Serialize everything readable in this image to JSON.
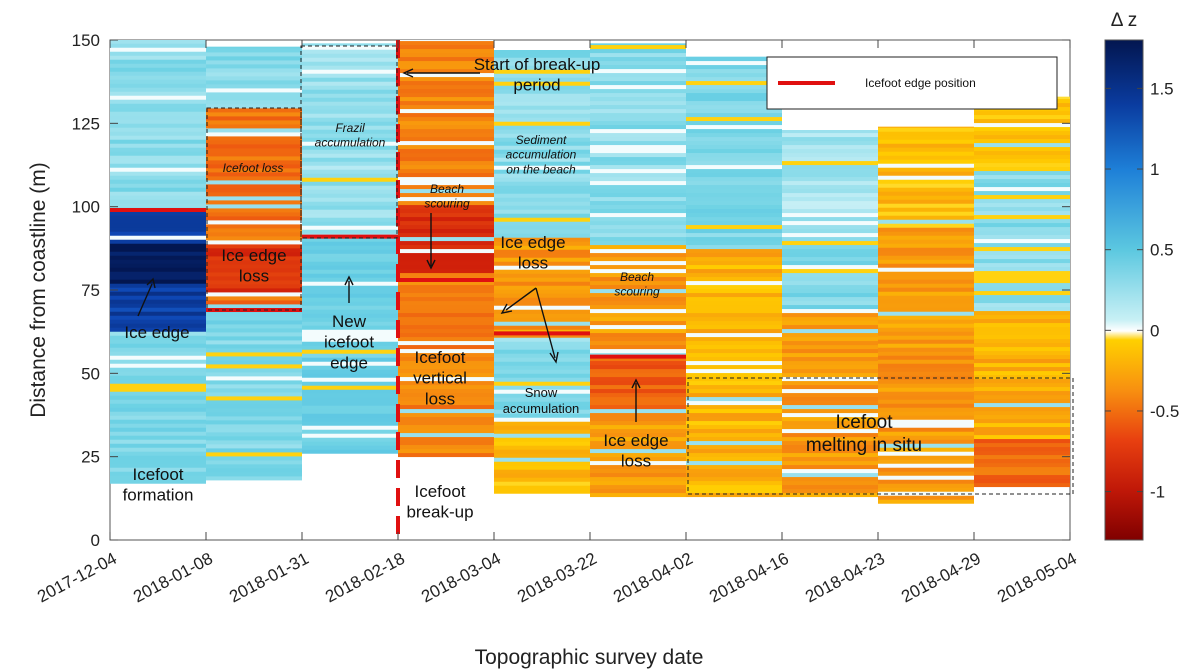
{
  "chart_data": {
    "type": "heatmap",
    "title": "",
    "xlabel": "Topographic survey date",
    "ylabel": "Distance from coastline (m)",
    "x_categories": [
      "2017-12-04",
      "2018-01-08",
      "2018-01-31",
      "2018-02-18",
      "2018-03-04",
      "2018-03-22",
      "2018-04-02",
      "2018-04-16",
      "2018-04-23",
      "2018-04-29",
      "2018-05-04"
    ],
    "ylim": [
      0,
      150
    ],
    "yticks": [
      0,
      25,
      50,
      75,
      100,
      125,
      150
    ],
    "colorbar": {
      "label": "Δ z",
      "range": [
        -1.3,
        1.8
      ],
      "ticks": [
        -1,
        -0.5,
        0,
        0.5,
        1,
        1.5
      ],
      "colors": {
        "deep_red": "#800000",
        "red": "#e02810",
        "orange": "#f08c10",
        "yellow": "#ffd500",
        "white": "#ffffff",
        "light_cyan": "#a8e6ef",
        "cyan": "#5cc8e0",
        "blue": "#2070d0",
        "navy": "#041a5c"
      }
    },
    "intervals": [
      {
        "from": "2017-12-04",
        "to": "2018-01-08",
        "y_min": 17,
        "y_max": 150,
        "dominant": "positive",
        "bands": [
          {
            "y0": 62,
            "y1": 98,
            "dz": 1.5
          },
          {
            "y0": 76,
            "y1": 88,
            "dz": 1.8
          },
          {
            "y0": 17,
            "y1": 62,
            "dz": 0.35
          },
          {
            "y0": 98,
            "y1": 150,
            "dz": 0.3
          }
        ]
      },
      {
        "from": "2018-01-08",
        "to": "2018-01-31",
        "y_min": 18,
        "y_max": 148,
        "dominant": "mixed",
        "bands": [
          {
            "y0": 70,
            "y1": 130,
            "dz": -0.45
          },
          {
            "y0": 74,
            "y1": 88,
            "dz": -0.8
          },
          {
            "y0": 18,
            "y1": 70,
            "dz": 0.35
          },
          {
            "y0": 130,
            "y1": 148,
            "dz": 0.3
          }
        ]
      },
      {
        "from": "2018-01-31",
        "to": "2018-02-18",
        "y_min": 26,
        "y_max": 149,
        "dominant": "positive",
        "bands": [
          {
            "y0": 26,
            "y1": 90,
            "dz": 0.45
          },
          {
            "y0": 90,
            "y1": 149,
            "dz": 0.25
          }
        ]
      },
      {
        "from": "2018-02-18",
        "to": "2018-03-04",
        "y_min": 25,
        "y_max": 150,
        "dominant": "negative",
        "bands": [
          {
            "y0": 25,
            "y1": 150,
            "dz": -0.4
          },
          {
            "y0": 80,
            "y1": 100,
            "dz": -0.8
          }
        ]
      },
      {
        "from": "2018-03-04",
        "to": "2018-03-22",
        "y_min": 14,
        "y_max": 147,
        "dominant": "mixed",
        "bands": [
          {
            "y0": 14,
            "y1": 35,
            "dz": -0.15
          },
          {
            "y0": 35,
            "y1": 60,
            "dz": 0.3
          },
          {
            "y0": 60,
            "y1": 90,
            "dz": -0.3
          },
          {
            "y0": 90,
            "y1": 147,
            "dz": 0.3
          }
        ]
      },
      {
        "from": "2018-03-22",
        "to": "2018-04-02",
        "y_min": 13,
        "y_max": 149,
        "dominant": "negative",
        "bands": [
          {
            "y0": 13,
            "y1": 88,
            "dz": -0.3
          },
          {
            "y0": 38,
            "y1": 55,
            "dz": -0.55
          },
          {
            "y0": 88,
            "y1": 149,
            "dz": 0.3
          }
        ]
      },
      {
        "from": "2018-04-02",
        "to": "2018-04-16",
        "y_min": 13,
        "y_max": 145,
        "dominant": "mixed",
        "bands": [
          {
            "y0": 13,
            "y1": 87,
            "dz": -0.2
          },
          {
            "y0": 87,
            "y1": 145,
            "dz": 0.35
          }
        ]
      },
      {
        "from": "2018-04-16",
        "to": "2018-04-23",
        "y_min": 13,
        "y_max": 123,
        "dominant": "mixed",
        "bands": [
          {
            "y0": 13,
            "y1": 68,
            "dz": -0.3
          },
          {
            "y0": 68,
            "y1": 93,
            "dz": 0.35
          },
          {
            "y0": 93,
            "y1": 123,
            "dz": 0.2
          }
        ]
      },
      {
        "from": "2018-04-23",
        "to": "2018-04-29",
        "y_min": 11,
        "y_max": 124,
        "dominant": "negative",
        "bands": [
          {
            "y0": 11,
            "y1": 93,
            "dz": -0.3
          },
          {
            "y0": 93,
            "y1": 124,
            "dz": -0.15
          }
        ]
      },
      {
        "from": "2018-04-29",
        "to": "2018-05-04",
        "y_min": 16,
        "y_max": 133,
        "dominant": "mixed",
        "bands": [
          {
            "y0": 16,
            "y1": 30,
            "dz": -0.5
          },
          {
            "y0": 30,
            "y1": 68,
            "dz": -0.2
          },
          {
            "y0": 68,
            "y1": 110,
            "dz": 0.3
          },
          {
            "y0": 110,
            "y1": 133,
            "dz": -0.1
          }
        ]
      }
    ],
    "icefoot_edge_positions": [
      {
        "interval": "2017-12-04",
        "y": 99
      },
      {
        "interval": "2018-01-08",
        "y": 69
      },
      {
        "interval": "2018-01-31",
        "y": 91
      },
      {
        "interval": "2018-02-18",
        "y": 78
      },
      {
        "interval": "2018-03-04",
        "y": 62
      },
      {
        "interval": "2018-03-22",
        "y": 55
      }
    ],
    "break_up_start": "2018-02-18",
    "legend": {
      "placement": "top-right",
      "entries": [
        {
          "label": "Icefoot edge position",
          "color": "#e01010"
        }
      ]
    },
    "annotations": {
      "icefoot_formation": "Icefoot formation",
      "ice_edge_1": "Ice edge",
      "icefoot_loss": "Icefoot loss",
      "ice_edge_loss_1": "Ice edge loss",
      "frazil": "Frazil accumulation",
      "new_icefoot_edge": "New icefoot edge",
      "start_breakup": "Start of break-up period",
      "beach_scouring_1": "Beach scouring",
      "icefoot_vertical_loss": "Icefoot vertical loss",
      "icefoot_breakup": "Icefoot break-up",
      "sediment_accumulation": "Sediment accumulation on the beach",
      "ice_edge_loss_2": "Ice edge loss",
      "snow_accumulation": "Snow accumulation",
      "beach_scouring_2": "Beach scouring",
      "ice_edge_loss_3": "Ice edge loss",
      "icefoot_melting": "Icefoot melting in situ"
    }
  }
}
